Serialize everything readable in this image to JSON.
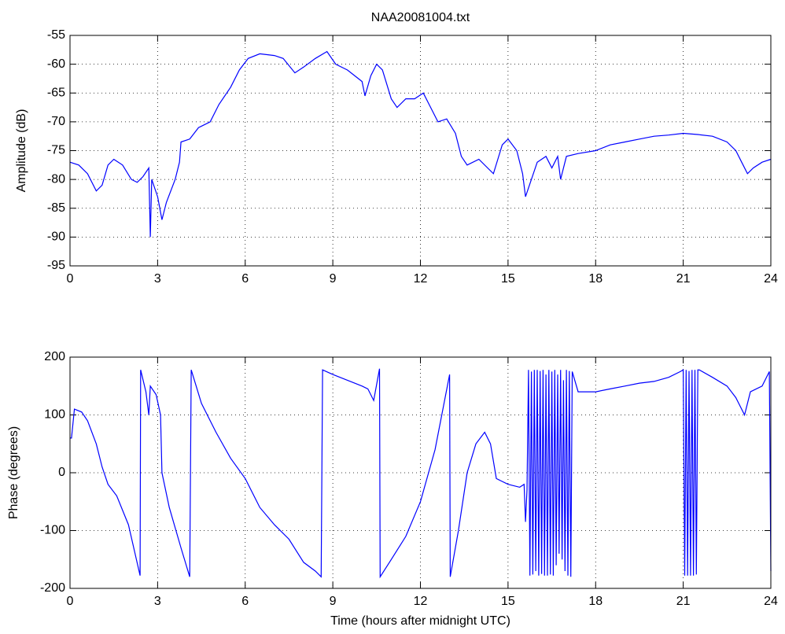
{
  "chart_data": [
    {
      "type": "line",
      "title": "NAA20081004.txt",
      "ylabel": "Amplitude (dB)",
      "grid": true,
      "xlim": [
        0,
        24
      ],
      "xticks": [
        0,
        3,
        6,
        9,
        12,
        15,
        18,
        21,
        24
      ],
      "ylim": [
        -95,
        -55
      ],
      "yticks": [
        -95,
        -90,
        -85,
        -80,
        -75,
        -70,
        -65,
        -60,
        -55
      ],
      "series": [
        {
          "name": "Amplitude",
          "color": "#0000ff",
          "x": [
            0,
            0.3,
            0.6,
            0.9,
            1.1,
            1.3,
            1.5,
            1.8,
            2.1,
            2.3,
            2.5,
            2.7,
            2.75,
            2.8,
            3.0,
            3.15,
            3.3,
            3.6,
            3.75,
            3.8,
            4.1,
            4.4,
            4.8,
            5.1,
            5.5,
            5.8,
            6.1,
            6.5,
            7.0,
            7.3,
            7.7,
            8.0,
            8.4,
            8.8,
            9.1,
            9.5,
            10.0,
            10.1,
            10.3,
            10.5,
            10.7,
            11.0,
            11.2,
            11.5,
            11.8,
            12.1,
            12.3,
            12.6,
            12.9,
            13.2,
            13.4,
            13.6,
            14.0,
            14.3,
            14.5,
            14.8,
            15.0,
            15.3,
            15.5,
            15.6,
            15.8,
            16.0,
            16.3,
            16.5,
            16.7,
            16.8,
            17.0,
            17.4,
            18,
            18.5,
            19,
            19.5,
            20,
            20.5,
            21,
            21.5,
            22,
            22.5,
            22.8,
            23.0,
            23.2,
            23.4,
            23.7,
            24
          ],
          "values": [
            -77,
            -77.5,
            -79,
            -82,
            -81,
            -77.5,
            -76.5,
            -77.5,
            -80,
            -80.5,
            -79.5,
            -78,
            -90,
            -80,
            -83,
            -87,
            -84,
            -80,
            -77,
            -73.5,
            -73,
            -71,
            -70,
            -67,
            -64,
            -61,
            -59,
            -58.2,
            -58.5,
            -59,
            -61.5,
            -60.5,
            -59,
            -57.8,
            -60,
            -61,
            -63,
            -65.5,
            -62,
            -60,
            -61,
            -66,
            -67.5,
            -66,
            -66,
            -65,
            -67,
            -70,
            -69.5,
            -72,
            -76,
            -77.5,
            -76.5,
            -78,
            -79,
            -74,
            -73,
            -75,
            -79,
            -83,
            -80,
            -77,
            -76,
            -78,
            -76,
            -80,
            -76,
            -75.5,
            -75,
            -74,
            -73.5,
            -73,
            -72.5,
            -72.3,
            -72,
            -72.2,
            -72.5,
            -73.5,
            -75,
            -77,
            -79,
            -78,
            -77,
            -76.5
          ]
        }
      ]
    },
    {
      "type": "line",
      "xlabel": "Time (hours after midnight UTC)",
      "ylabel": "Phase (degrees)",
      "grid": true,
      "xlim": [
        0,
        24
      ],
      "xticks": [
        0,
        3,
        6,
        9,
        12,
        15,
        18,
        21,
        24
      ],
      "ylim": [
        -200,
        200
      ],
      "yticks": [
        -200,
        -100,
        0,
        100,
        200
      ],
      "series": [
        {
          "name": "Phase",
          "color": "#0000ff",
          "x": [
            0,
            0.05,
            0.15,
            0.4,
            0.6,
            0.9,
            1.1,
            1.3,
            1.6,
            2.0,
            2.4,
            2.42,
            2.6,
            2.7,
            2.75,
            2.95,
            3.1,
            3.15,
            3.4,
            3.8,
            4.1,
            4.15,
            4.5,
            5.0,
            5.5,
            6.0,
            6.5,
            7.0,
            7.5,
            8.0,
            8.4,
            8.6,
            8.65,
            9.0,
            9.5,
            10.0,
            10.2,
            10.4,
            10.6,
            10.62,
            11.0,
            11.5,
            12.0,
            12.5,
            13.0,
            13.02,
            13.3,
            13.6,
            13.9,
            14.2,
            14.4,
            14.6,
            15.0,
            15.4,
            15.55,
            15.6,
            15.65,
            15.7,
            15.75,
            15.8,
            15.85,
            15.9,
            15.95,
            16.0,
            16.05,
            16.1,
            16.15,
            16.2,
            16.25,
            16.3,
            16.35,
            16.4,
            16.45,
            16.5,
            16.55,
            16.6,
            16.65,
            16.7,
            16.75,
            16.8,
            16.85,
            16.9,
            16.95,
            17.0,
            17.05,
            17.1,
            17.15,
            17.2,
            17.4,
            18,
            18.5,
            19,
            19.5,
            20,
            20.5,
            20.9,
            21.0,
            21.05,
            21.1,
            21.15,
            21.2,
            21.25,
            21.3,
            21.35,
            21.4,
            21.45,
            21.5,
            21.55,
            22,
            22.5,
            22.8,
            23.1,
            23.3,
            23.7,
            23.95,
            24.0
          ],
          "values": [
            60,
            60,
            110,
            105,
            90,
            50,
            10,
            -20,
            -40,
            -90,
            -178,
            178,
            140,
            100,
            150,
            135,
            100,
            0,
            -60,
            -130,
            -180,
            178,
            120,
            70,
            25,
            -10,
            -60,
            -90,
            -115,
            -155,
            -170,
            -180,
            178,
            170,
            160,
            150,
            145,
            125,
            180,
            -180,
            -150,
            -110,
            -50,
            40,
            170,
            -180,
            -100,
            0,
            50,
            70,
            50,
            -10,
            -20,
            -25,
            -20,
            -85,
            -30,
            178,
            -178,
            175,
            -176,
            178,
            -170,
            178,
            -178,
            176,
            -175,
            178,
            -178,
            170,
            -178,
            178,
            -176,
            175,
            -178,
            178,
            -160,
            170,
            -140,
            178,
            -150,
            160,
            -170,
            178,
            -178,
            176,
            -180,
            175,
            140,
            140,
            145,
            150,
            155,
            158,
            165,
            175,
            178,
            -178,
            178,
            -178,
            176,
            -178,
            178,
            -178,
            178,
            -176,
            178,
            178,
            165,
            150,
            130,
            100,
            140,
            150,
            175,
            -170
          ]
        }
      ]
    }
  ]
}
